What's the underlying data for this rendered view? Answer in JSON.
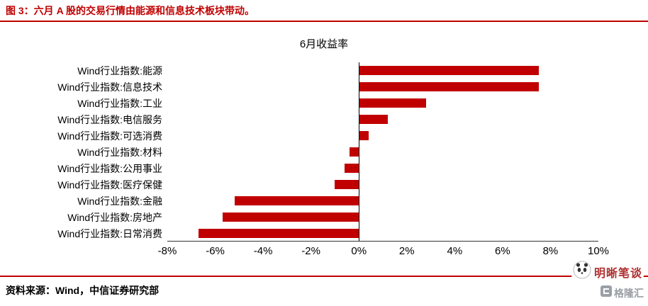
{
  "header": {
    "title": "图 3：六月 A 股的交易行情由能源和信息技术板块带动。"
  },
  "chart_data": {
    "type": "bar",
    "orientation": "horizontal",
    "title": "6月收益率",
    "categories": [
      "Wind行业指数:能源",
      "Wind行业指数:信息技术",
      "Wind行业指数:工业",
      "Wind行业指数:电信服务",
      "Wind行业指数:可选消费",
      "Wind行业指数:材料",
      "Wind行业指数:公用事业",
      "Wind行业指数:医疗保健",
      "Wind行业指数:金融",
      "Wind行业指数:房地产",
      "Wind行业指数:日常消费"
    ],
    "values": [
      7.5,
      7.5,
      2.8,
      1.2,
      0.4,
      -0.4,
      -0.6,
      -1.0,
      -5.2,
      -5.7,
      -6.7
    ],
    "xlim": [
      -8,
      10
    ],
    "x_ticks": [
      "-8%",
      "-6%",
      "-4%",
      "-2%",
      "0%",
      "2%",
      "4%",
      "6%",
      "8%",
      "10%"
    ],
    "bar_color": "#c00000",
    "grid": false,
    "legend": "none"
  },
  "footer": {
    "source": "资料来源：Wind，中信证券研究部"
  },
  "watermark": {
    "text": "明晰笔谈",
    "logo_text": "格隆汇"
  },
  "colors": {
    "accent_red": "#c00000",
    "axis_black": "#000000",
    "watermark_gray": "#9aa0a6"
  }
}
